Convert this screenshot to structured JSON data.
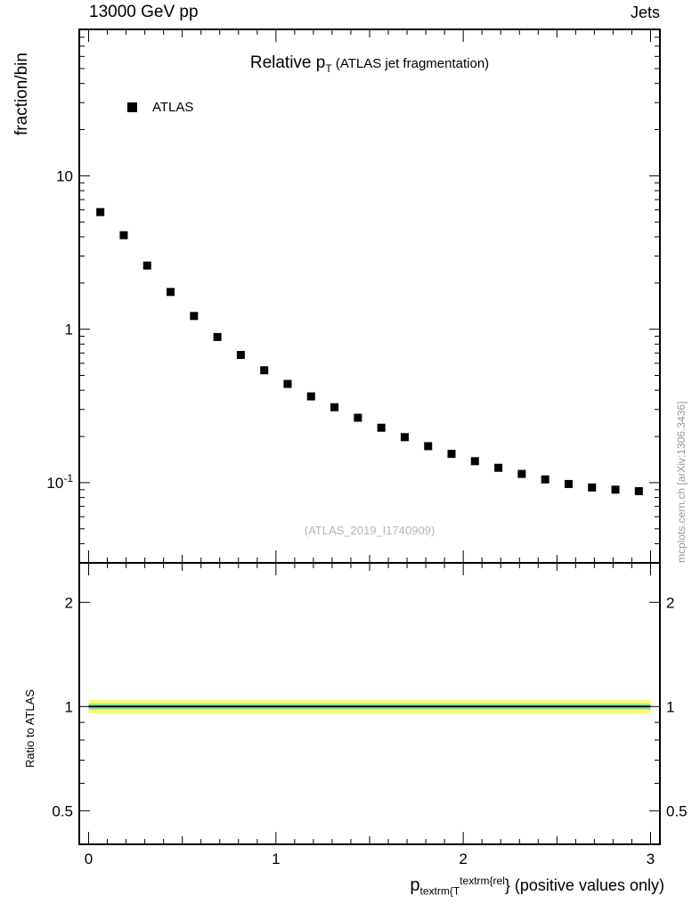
{
  "header": {
    "left": "13000 GeV pp",
    "right": "Jets"
  },
  "main_panel": {
    "ylabel": "fraction/bin",
    "title": {
      "prefix": "Relative p",
      "sub": "T",
      "suffix": " (ATLAS jet fragmentation)"
    },
    "legend": [
      {
        "label": "ATLAS",
        "marker": "filled-black-square"
      }
    ],
    "watermark": "(ATLAS_2019_I1740909)"
  },
  "ratio_panel": {
    "ylabel": "Ratio to ATLAS"
  },
  "side_note": "mcplots.cern.ch [arXiv:1306.3436]",
  "x_axis": {
    "p": "p",
    "sub": "textrm{T",
    "sup": "textrm{rel",
    "rest": "} (positive values only)"
  },
  "chart_data": {
    "type": "scatter",
    "title": "Relative pT (ATLAS jet fragmentation)",
    "xlabel": "pT rel (positive values only)",
    "ylabel": "fraction/bin",
    "legend_position": "top-left-inside",
    "grid": false,
    "series": [
      {
        "name": "ATLAS",
        "marker": "filled-square",
        "color": "#000000",
        "x": [
          0.0625,
          0.1875,
          0.3125,
          0.4375,
          0.5625,
          0.6875,
          0.8125,
          0.9375,
          1.0625,
          1.1875,
          1.3125,
          1.4375,
          1.5625,
          1.6875,
          1.8125,
          1.9375,
          2.0625,
          2.1875,
          2.3125,
          2.4375,
          2.5625,
          2.6875,
          2.8125,
          2.9375
        ],
        "y": [
          5.8,
          4.1,
          2.6,
          1.75,
          1.22,
          0.89,
          0.68,
          0.54,
          0.44,
          0.365,
          0.31,
          0.265,
          0.228,
          0.198,
          0.173,
          0.154,
          0.138,
          0.125,
          0.114,
          0.105,
          0.098,
          0.093,
          0.09,
          0.088
        ]
      }
    ],
    "main_axis": {
      "xlim": [
        -0.05,
        3.05
      ],
      "ylog": true,
      "ylim": [
        0.03,
        90
      ],
      "x_major_ticks": [
        0,
        1,
        2,
        3
      ],
      "y_labeled_ticks": [
        {
          "value": 10,
          "label": "10"
        },
        {
          "value": 1,
          "label": "1"
        },
        {
          "value": 0.1,
          "label": "10",
          "exp": "-1"
        }
      ]
    },
    "ratio_axis": {
      "ylog": true,
      "ylim": [
        0.4,
        2.6
      ],
      "labeled_ticks": [
        {
          "value": 2,
          "label": "2"
        },
        {
          "value": 1,
          "label": "1"
        },
        {
          "value": 0.5,
          "label": "0.5"
        }
      ],
      "minor_ticks": [
        0.4,
        0.6,
        0.7,
        0.8,
        0.9
      ]
    },
    "ratio_band": {
      "x_range": [
        0,
        3
      ],
      "line": 1.0,
      "yellow": [
        0.955,
        1.045
      ],
      "green": [
        0.98,
        1.02
      ],
      "yellow_color": "#f7f77a",
      "green_color": "#8fe88f",
      "line_color": "#000000"
    }
  }
}
